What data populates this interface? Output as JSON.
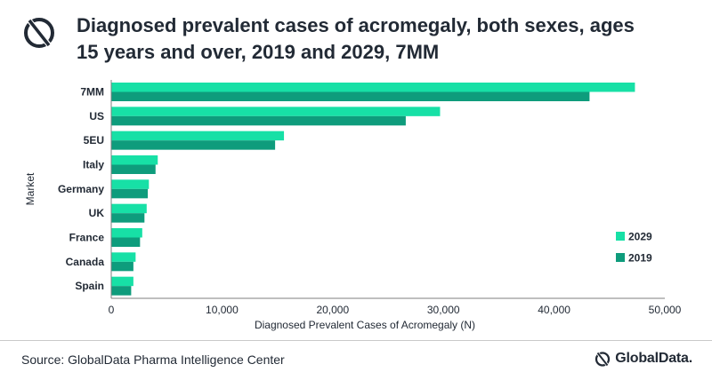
{
  "header": {
    "title_line1": "Diagnosed prevalent cases of acromegaly, both sexes, ages",
    "title_line2": "15 years and over, 2019 and 2029, 7MM"
  },
  "footer": {
    "source": "Source: GlobalData Pharma Intelligence Center",
    "brand": "GlobalData."
  },
  "chart_data": {
    "type": "bar",
    "orientation": "horizontal",
    "title": "Diagnosed prevalent cases of acromegaly, both sexes, ages 15 years and over, 2019 and 2029, 7MM",
    "xlabel": "Diagnosed Prevalent Cases of Acromegaly (N)",
    "ylabel": "Market",
    "categories": [
      "7MM",
      "US",
      "5EU",
      "Italy",
      "Germany",
      "UK",
      "France",
      "Canada",
      "Spain"
    ],
    "xlim": [
      0,
      50000
    ],
    "xticks": [
      0,
      10000,
      20000,
      30000,
      40000,
      50000
    ],
    "xtick_labels": [
      "0",
      "10,000",
      "20,000",
      "30,000",
      "40,000",
      "50,000"
    ],
    "grid": false,
    "legend_position": "right",
    "series": [
      {
        "name": "2029",
        "color": "#17e0a6",
        "values": [
          47300,
          29700,
          15600,
          4200,
          3400,
          3200,
          2800,
          2200,
          2000
        ]
      },
      {
        "name": "2019",
        "color": "#0e9c7c",
        "values": [
          43200,
          26600,
          14800,
          4000,
          3300,
          3000,
          2600,
          2000,
          1800
        ]
      }
    ],
    "legend_order": [
      "2029",
      "2019"
    ]
  },
  "colors": {
    "accent_light": "#17e0a6",
    "accent_dark": "#0e9c7c",
    "text": "#222a35"
  }
}
